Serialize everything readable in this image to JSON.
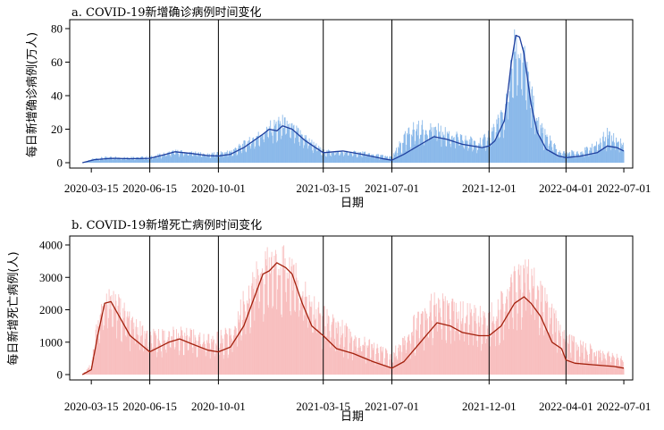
{
  "chart_data": [
    {
      "type": "bar",
      "title": "a. COVID-19新增确诊病例时间变化",
      "xlabel": "日期",
      "ylabel": "每日新增确诊病例(万人)",
      "ylim": [
        0,
        80
      ],
      "yticks": [
        0,
        20,
        40,
        60,
        80
      ],
      "xlim": [
        "2020-02-10",
        "2022-07-15"
      ],
      "xticks": [
        "2020-03-15",
        "2020-06-15",
        "2020-10-01",
        "2021-03-15",
        "2021-07-01",
        "2021-12-01",
        "2022-04-01",
        "2022-07-01"
      ],
      "vlines": [
        "2020-06-15",
        "2020-10-01",
        "2021-03-15",
        "2021-07-01",
        "2021-12-01",
        "2022-04-01"
      ],
      "bar_color": "#7fb2e8",
      "line_color": "#1f3f9e",
      "series": [
        {
          "type": "line",
          "x": [
            "2020-03-01",
            "2020-03-20",
            "2020-04-15",
            "2020-05-15",
            "2020-06-15",
            "2020-07-10",
            "2020-07-25",
            "2020-08-20",
            "2020-09-15",
            "2020-10-01",
            "2020-10-20",
            "2020-11-10",
            "2020-11-25",
            "2020-12-10",
            "2020-12-20",
            "2021-01-01",
            "2021-01-10",
            "2021-01-25",
            "2021-02-15",
            "2021-03-15",
            "2021-04-15",
            "2021-05-15",
            "2021-06-15",
            "2021-07-01",
            "2021-07-20",
            "2021-08-20",
            "2021-09-05",
            "2021-09-25",
            "2021-10-20",
            "2021-11-20",
            "2021-12-01",
            "2021-12-10",
            "2021-12-25",
            "2022-01-05",
            "2022-01-12",
            "2022-01-18",
            "2022-01-25",
            "2022-02-05",
            "2022-02-15",
            "2022-03-01",
            "2022-03-20",
            "2022-04-01",
            "2022-04-25",
            "2022-05-20",
            "2022-06-05",
            "2022-06-20",
            "2022-07-01"
          ],
          "y": [
            0,
            1.8,
            2.6,
            2.4,
            2.6,
            5,
            6.5,
            5.5,
            4.2,
            4,
            5,
            9,
            13,
            17,
            20,
            19,
            22,
            20,
            13,
            6,
            7,
            5,
            2.5,
            1.5,
            5,
            12,
            15.5,
            14,
            11,
            9,
            10,
            13,
            25,
            60,
            76,
            75,
            65,
            35,
            18,
            8,
            4,
            3,
            4,
            6,
            10,
            9,
            7
          ]
        },
        {
          "type": "bar",
          "envelope": {
            "x": [
              "2020-03-01",
              "2020-03-20",
              "2020-04-15",
              "2020-05-15",
              "2020-06-15",
              "2020-07-25",
              "2020-08-20",
              "2020-09-15",
              "2020-10-20",
              "2020-11-25",
              "2020-12-20",
              "2021-01-10",
              "2021-02-15",
              "2021-03-15",
              "2021-05-15",
              "2021-07-01",
              "2021-07-20",
              "2021-08-05",
              "2021-09-05",
              "2021-10-20",
              "2021-11-20",
              "2021-12-25",
              "2022-01-10",
              "2022-01-25",
              "2022-02-15",
              "2022-03-20",
              "2022-04-25",
              "2022-05-20",
              "2022-06-05",
              "2022-07-01"
            ],
            "y": [
              0,
              3,
              4,
              4,
              4,
              8,
              7,
              6,
              8,
              17,
              25,
              29,
              18,
              8,
              7,
              4,
              18,
              26,
              25,
              17,
              15,
              35,
              80,
              72,
              30,
              8,
              8,
              13,
              22,
              13
            ]
          }
        }
      ]
    },
    {
      "type": "bar",
      "title": "b. COVID-19新增死亡病例时间变化",
      "xlabel": "日期",
      "ylabel": "每日新增死亡病例(人)",
      "ylim": [
        0,
        4000
      ],
      "yticks": [
        0,
        1000,
        2000,
        3000,
        4000
      ],
      "xlim": [
        "2020-02-10",
        "2022-07-15"
      ],
      "xticks": [
        "2020-03-15",
        "2020-06-15",
        "2020-10-01",
        "2021-03-15",
        "2021-07-01",
        "2021-12-01",
        "2022-04-01",
        "2022-07-01"
      ],
      "vlines": [
        "2020-06-15",
        "2020-10-01",
        "2021-03-15",
        "2021-07-01",
        "2021-12-01",
        "2022-04-01"
      ],
      "bar_color": "#f7b9b9",
      "line_color": "#a3200c",
      "series": [
        {
          "type": "line",
          "x": [
            "2020-03-01",
            "2020-03-15",
            "2020-03-25",
            "2020-04-05",
            "2020-04-15",
            "2020-04-25",
            "2020-05-15",
            "2020-06-15",
            "2020-07-15",
            "2020-08-01",
            "2020-08-20",
            "2020-09-15",
            "2020-10-01",
            "2020-10-20",
            "2020-11-10",
            "2020-11-25",
            "2020-12-10",
            "2020-12-20",
            "2021-01-01",
            "2021-01-15",
            "2021-01-25",
            "2021-02-10",
            "2021-02-25",
            "2021-03-15",
            "2021-04-05",
            "2021-05-01",
            "2021-06-01",
            "2021-07-01",
            "2021-07-20",
            "2021-08-15",
            "2021-09-10",
            "2021-10-01",
            "2021-10-20",
            "2021-11-15",
            "2021-12-01",
            "2021-12-20",
            "2022-01-10",
            "2022-01-25",
            "2022-02-05",
            "2022-02-20",
            "2022-03-10",
            "2022-03-25",
            "2022-04-01",
            "2022-04-15",
            "2022-05-15",
            "2022-06-15",
            "2022-07-01"
          ],
          "y": [
            0,
            150,
            1200,
            2200,
            2250,
            1900,
            1200,
            700,
            1000,
            1100,
            950,
            750,
            700,
            850,
            1500,
            2300,
            3100,
            3200,
            3450,
            3300,
            3100,
            2200,
            1500,
            1200,
            800,
            650,
            400,
            200,
            400,
            1000,
            1600,
            1500,
            1300,
            1200,
            1200,
            1500,
            2200,
            2400,
            2200,
            1800,
            1000,
            800,
            450,
            350,
            300,
            250,
            200
          ]
        },
        {
          "type": "bar",
          "envelope": {
            "x": [
              "2020-03-01",
              "2020-03-15",
              "2020-03-25",
              "2020-04-15",
              "2020-05-15",
              "2020-06-15",
              "2020-08-01",
              "2020-09-15",
              "2020-10-20",
              "2020-11-25",
              "2020-12-20",
              "2021-01-15",
              "2021-02-10",
              "2021-03-15",
              "2021-05-01",
              "2021-07-01",
              "2021-08-15",
              "2021-09-10",
              "2021-10-20",
              "2021-12-01",
              "2021-12-20",
              "2022-01-25",
              "2022-02-20",
              "2022-03-25",
              "2022-04-15",
              "2022-05-15",
              "2022-07-01"
            ],
            "y": [
              0,
              400,
              2000,
              2900,
              2000,
              1400,
              1500,
              1300,
              1500,
              3500,
              4000,
              4200,
              3000,
              2200,
              1400,
              700,
              2300,
              2600,
              2300,
              2100,
              2800,
              3800,
              3000,
              1600,
              1200,
              900,
              600
            ]
          }
        }
      ]
    }
  ]
}
